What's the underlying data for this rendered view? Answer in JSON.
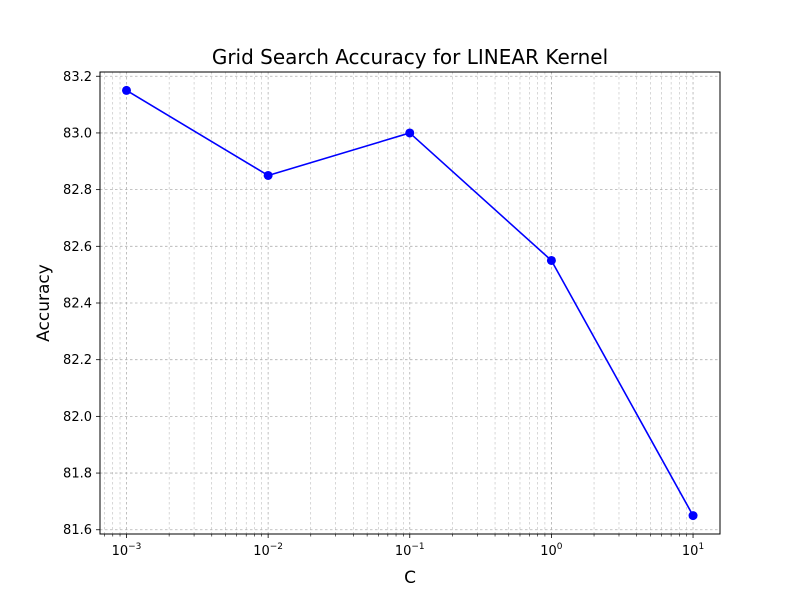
{
  "chart_data": {
    "type": "line",
    "title": "Grid Search Accuracy for LINEAR Kernel",
    "xlabel": "C",
    "ylabel": "Accuracy",
    "x_scale": "log",
    "x": [
      0.001,
      0.01,
      0.1,
      1,
      10
    ],
    "series": [
      {
        "values": [
          83.15,
          82.85,
          83.0,
          82.55,
          81.65
        ],
        "color": "#0000ff",
        "marker": "circle"
      }
    ],
    "xlim": [
      0.00065,
      15.5
    ],
    "ylim": [
      81.585,
      83.215
    ],
    "x_ticks": [
      {
        "value": 0.001,
        "base": "10",
        "exp": "−3"
      },
      {
        "value": 0.01,
        "base": "10",
        "exp": "−2"
      },
      {
        "value": 0.1,
        "base": "10",
        "exp": "−1"
      },
      {
        "value": 1,
        "base": "10",
        "exp": "0"
      },
      {
        "value": 10,
        "base": "10",
        "exp": "1"
      }
    ],
    "y_ticks": [
      81.6,
      81.8,
      82.0,
      82.2,
      82.4,
      82.6,
      82.8,
      83.0,
      83.2
    ],
    "y_tick_labels": [
      "81.6",
      "81.8",
      "82.0",
      "82.2",
      "82.4",
      "82.6",
      "82.8",
      "83.0",
      "83.2"
    ],
    "grid": "both, major and minor, dashed",
    "legend": "none"
  }
}
